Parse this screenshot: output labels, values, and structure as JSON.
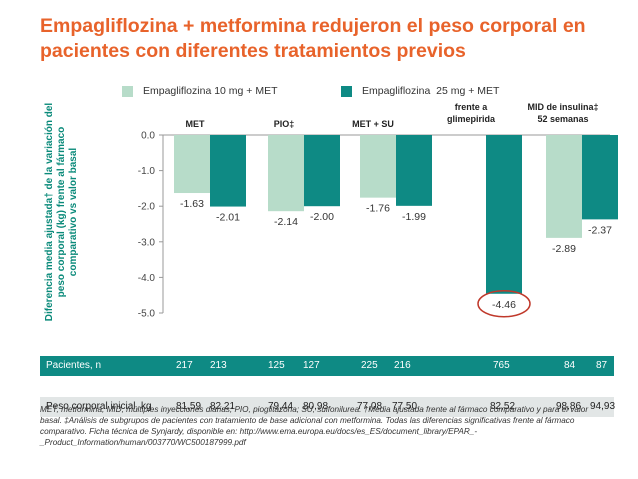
{
  "title_lines": [
    "Empagliflozina + metformina redujeron el peso corporal en",
    "pacientes con diferentes tratamientos previos"
  ],
  "colors": {
    "accent": "#e8632b",
    "light_series": "#b7dcc9",
    "dark_series": "#0e8a84",
    "teal_text": "#0a8a7a",
    "highlight": "#c0392b"
  },
  "chart_data": {
    "type": "bar",
    "title": "",
    "ylabel": "Diferencia media ajustada† de la variación del peso corporal (kg) frente al fármaco comparativo vs valor basal",
    "ylim": [
      -5.0,
      0.0
    ],
    "yticks": [
      "0.0",
      "-1.0",
      "-2.0",
      "-3.0",
      "-4.0",
      "-5.0"
    ],
    "grid": false,
    "legend_position": "top",
    "series": [
      {
        "name": "Empagliflozina 10 mg + MET",
        "color": "#b7dcc9"
      },
      {
        "name": "Empagliflozina  25 mg + MET",
        "color": "#0e8a84"
      }
    ],
    "groups": [
      {
        "label": "MET",
        "values": [
          -1.63,
          -2.01
        ],
        "labels": [
          "-1.63",
          "-2.01"
        ]
      },
      {
        "label": "PIO‡",
        "values": [
          -2.14,
          -2.0
        ],
        "labels": [
          "-2.14",
          "-2.00"
        ]
      },
      {
        "label": "MET + SU",
        "values": [
          -1.76,
          -1.99
        ],
        "labels": [
          "-1.76",
          "-1.99"
        ]
      },
      {
        "label": "frente a\nglimepirida",
        "values": [
          null,
          -4.46
        ],
        "labels": [
          null,
          "-4.46"
        ],
        "highlighted": "-4.46"
      },
      {
        "label": "MID de insulina‡\n52 semanas",
        "values": [
          -2.89,
          -2.37
        ],
        "labels": [
          "-2.89",
          "-2.37"
        ]
      }
    ]
  },
  "table": {
    "row1_label": "Pacientes, n",
    "row1_values": [
      "217",
      "213",
      "125",
      "127",
      "225",
      "216",
      "765",
      "84",
      "87"
    ],
    "row2_label": "Peso corporal inicial, kg",
    "row2_values": [
      "81,59",
      "82,21",
      "79,44",
      "80,98",
      "77,08",
      "77,50",
      "82,52",
      "98,86",
      "94,93"
    ]
  },
  "footnote": "MET, metformina; MID, múltiples inyecciones diarias; PIO, pioglitazona; SU, sulfonilurea. †Media ajustada frente al fármaco comparativo y para el valor basal. ‡Análisis de subgrupos de pacientes con tratamiento de base adicional con metformina. Todas las diferencias significativas frente al fármaco comparativo. Ficha técnica de Synjardy, disponible en: http://www.ema.europa.eu/docs/es_ES/document_library/EPAR_-_Product_Information/human/003770/WC500187999.pdf"
}
